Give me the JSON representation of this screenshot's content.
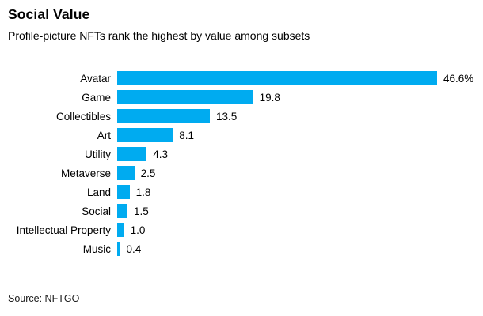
{
  "header": {
    "title": "Social Value",
    "subtitle": "Profile-picture NFTs rank the highest by value among subsets"
  },
  "footer": {
    "source": "Source: NFTGO"
  },
  "colors": {
    "bar": "#00abf0",
    "text": "#000000",
    "background": "#ffffff"
  },
  "chart_data": {
    "type": "bar",
    "orientation": "horizontal",
    "title": "Social Value",
    "subtitle": "Profile-picture NFTs rank the highest by value among subsets",
    "source": "Source: NFTGO",
    "categories": [
      "Avatar",
      "Game",
      "Collectibles",
      "Art",
      "Utility",
      "Metaverse",
      "Land",
      "Social",
      "Intellectual Property",
      "Music"
    ],
    "values": [
      46.6,
      19.8,
      13.5,
      8.1,
      4.3,
      2.5,
      1.8,
      1.5,
      1.0,
      0.4
    ],
    "value_labels": [
      "46.6%",
      "19.8",
      "13.5",
      "8.1",
      "4.3",
      "2.5",
      "1.8",
      "1.5",
      "1.0",
      "0.4"
    ],
    "unit": "%",
    "xlabel": "",
    "ylabel": "",
    "xlim": [
      0,
      46.6
    ],
    "grid": false,
    "legend": false,
    "bar_color": "#00abf0"
  }
}
